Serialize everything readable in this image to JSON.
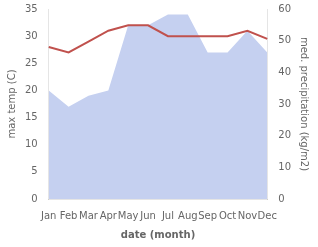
{
  "chart_data": {
    "type": "line",
    "categories": [
      "Jan",
      "Feb",
      "Mar",
      "Apr",
      "May",
      "Jun",
      "Jul",
      "Aug",
      "Sep",
      "Oct",
      "Nov",
      "Dec"
    ],
    "xlabel": "date (month)",
    "ylabel": "max temp (C)",
    "y2label": "med. precipitation (kg/m2)",
    "ylim": [
      0,
      35
    ],
    "yticks": [
      0,
      5,
      10,
      15,
      20,
      25,
      30,
      35
    ],
    "y2lim": [
      0,
      60
    ],
    "y2ticks": [
      0,
      10,
      20,
      30,
      40,
      50,
      60
    ],
    "grid": false,
    "series": [
      {
        "type": "area",
        "color": "#c5d0f0",
        "values": [
          20,
          17,
          19,
          20,
          32,
          32,
          34,
          34,
          27,
          27,
          31,
          27
        ]
      },
      {
        "type": "line",
        "color": "#c0514d",
        "values": [
          28,
          27,
          29,
          31,
          32,
          32,
          30,
          30,
          30,
          30,
          31,
          29.5
        ]
      }
    ]
  }
}
